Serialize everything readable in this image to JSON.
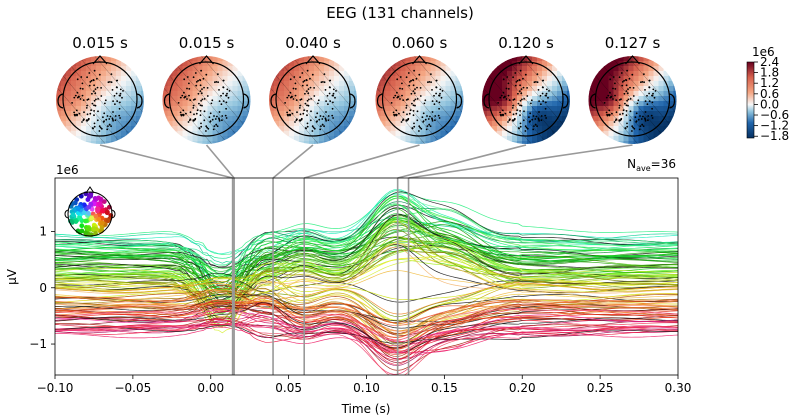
{
  "chart_data": {
    "type": "line",
    "title": "EEG (131 channels)",
    "n_channels": 131,
    "nave_label": "N",
    "nave_subscript": "ave",
    "nave_value": "=36",
    "xlabel": "Time (s)",
    "ylabel": "µV",
    "y_scale_label": "1e6",
    "xlim": [
      -0.1,
      0.3
    ],
    "ylim": [
      -1.55,
      1.95
    ],
    "x_ticks": [
      -0.1,
      -0.05,
      0.0,
      0.05,
      0.1,
      0.15,
      0.2,
      0.25,
      0.3
    ],
    "x_tick_labels": [
      "−0.10",
      "−0.05",
      "0.00",
      "0.05",
      "0.10",
      "0.15",
      "0.20",
      "0.25",
      "0.30"
    ],
    "y_ticks": [
      -1,
      0,
      1
    ],
    "y_tick_labels": [
      "−1",
      "0",
      "1"
    ],
    "topomap_times": [
      0.015,
      0.015,
      0.04,
      0.06,
      0.12,
      0.127
    ],
    "topomap_labels": [
      "0.015 s",
      "0.015 s",
      "0.040 s",
      "0.060 s",
      "0.120 s",
      "0.127 s"
    ],
    "colorbar": {
      "scale_label": "1e6",
      "ticks": [
        2.4,
        1.8,
        1.2,
        0.6,
        0.0,
        -0.6,
        -1.2,
        -1.8
      ],
      "tick_labels": [
        "2.4",
        "1.8",
        "1.2",
        "0.6",
        "0.0",
        "−0.6",
        "−1.2",
        "−1.8"
      ],
      "range": [
        -1.9,
        2.4
      ],
      "colormap": "RdBu_r"
    },
    "series_summary": {
      "description_values": "131 butterfly traces with baseline offsets between about -0.8 and 0.9 (x1e6 µV); strongest deflections near 0.00 s, 0.04 s, 0.12 s and 0.15 s",
      "peak_max": 1.75,
      "peak_min": -1.3
    },
    "grid": false,
    "legend": "channel-position head inset at top-left of plot"
  },
  "colors": {
    "axis": "#000000",
    "marker_line": "#999999",
    "negative": "#2166ac",
    "positive": "#b2182b"
  }
}
